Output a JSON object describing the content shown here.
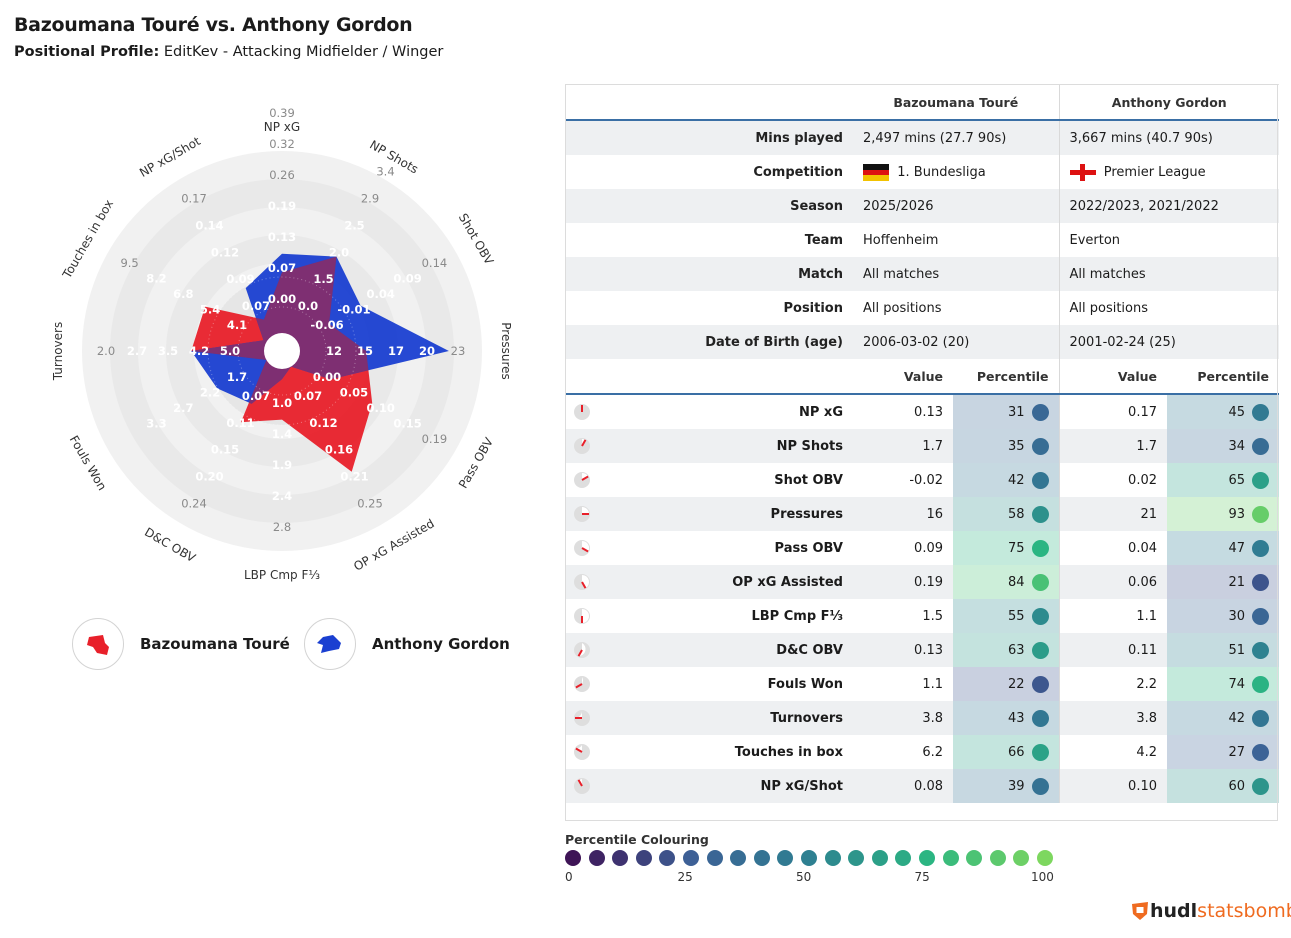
{
  "header": {
    "title": "Bazoumana Touré vs. Anthony Gordon",
    "profile_label": "Positional Profile:",
    "profile_value": "EditKev - Attacking Midfielder / Winger"
  },
  "colors": {
    "player1": "#e8202a",
    "player2": "#1a3fd1",
    "overlap": "#7e2f72"
  },
  "chart_data": {
    "type": "radar",
    "axes": [
      {
        "label": "NP xG",
        "ticks": [
          "0.00",
          "0.07",
          "0.13",
          "0.19",
          "0.26",
          "0.32",
          "0.39"
        ]
      },
      {
        "label": "NP Shots",
        "ticks": [
          "0.0",
          "1.5",
          "2.0",
          "2.5",
          "2.9",
          "3.4"
        ]
      },
      {
        "label": "Shot OBV",
        "ticks": [
          "-0.06",
          "-0.01",
          "0.04",
          "0.09",
          "0.14"
        ]
      },
      {
        "label": "Pressures",
        "ticks": [
          "12",
          "15",
          "17",
          "20",
          "23"
        ]
      },
      {
        "label": "Pass OBV",
        "ticks": [
          "0.00",
          "0.05",
          "0.10",
          "0.15",
          "0.19"
        ]
      },
      {
        "label": "OP xG Assisted",
        "ticks": [
          "0.07",
          "0.12",
          "0.16",
          "0.21",
          "0.25"
        ]
      },
      {
        "label": "LBP Cmp F⅓",
        "ticks": [
          "1.0",
          "1.4",
          "1.9",
          "2.4",
          "2.8"
        ]
      },
      {
        "label": "D&C OBV",
        "ticks": [
          "0.07",
          "0.11",
          "0.15",
          "0.20",
          "0.24"
        ]
      },
      {
        "label": "Fouls Won",
        "ticks": [
          "1.7",
          "2.2",
          "2.7",
          "3.3"
        ]
      },
      {
        "label": "Turnovers",
        "ticks": [
          "5.0",
          "4.2",
          "3.5",
          "2.7",
          "2.0"
        ]
      },
      {
        "label": "Touches in box",
        "ticks": [
          "4.1",
          "5.4",
          "6.8",
          "8.2",
          "9.5"
        ]
      },
      {
        "label": "NP xG/Shot",
        "ticks": [
          "0.07",
          "0.09",
          "0.12",
          "0.14",
          "0.17"
        ]
      }
    ],
    "series": [
      {
        "name": "Bazoumana Touré",
        "values": [
          0.13,
          1.7,
          -0.02,
          16,
          0.09,
          0.19,
          1.5,
          0.13,
          1.1,
          3.8,
          6.2,
          0.08
        ]
      },
      {
        "name": "Anthony Gordon",
        "values": [
          0.17,
          1.7,
          0.02,
          21,
          0.04,
          0.06,
          1.1,
          0.11,
          2.2,
          3.8,
          4.2,
          0.1
        ]
      }
    ]
  },
  "legend": {
    "player1": "Bazoumana Touré",
    "player2": "Anthony Gordon"
  },
  "table": {
    "player1_header": "Bazoumana Touré",
    "player2_header": "Anthony Gordon",
    "info": [
      {
        "label": "Mins played",
        "p1": "2,497 mins (27.7 90s)",
        "p2": "3,667 mins (40.7 90s)"
      },
      {
        "label": "Competition",
        "p1": "1. Bundesliga",
        "p2": "Premier League"
      },
      {
        "label": "Season",
        "p1": "2025/2026",
        "p2": "2022/2023, 2021/2022"
      },
      {
        "label": "Team",
        "p1": "Hoffenheim",
        "p2": "Everton"
      },
      {
        "label": "Match",
        "p1": "All matches",
        "p2": "All matches"
      },
      {
        "label": "Position",
        "p1": "All positions",
        "p2": "All positions"
      },
      {
        "label": "Date of Birth (age)",
        "p1": "2006-03-02 (20)",
        "p2": "2001-02-24 (25)"
      }
    ],
    "value_header": "Value",
    "percentile_header": "Percentile",
    "metrics": [
      {
        "name": "NP xG",
        "v1": "0.13",
        "p1": 31,
        "v2": "0.17",
        "p2": 45
      },
      {
        "name": "NP Shots",
        "v1": "1.7",
        "p1": 35,
        "v2": "1.7",
        "p2": 34
      },
      {
        "name": "Shot OBV",
        "v1": "-0.02",
        "p1": 42,
        "v2": "0.02",
        "p2": 65
      },
      {
        "name": "Pressures",
        "v1": "16",
        "p1": 58,
        "v2": "21",
        "p2": 93
      },
      {
        "name": "Pass OBV",
        "v1": "0.09",
        "p1": 75,
        "v2": "0.04",
        "p2": 47
      },
      {
        "name": "OP xG Assisted",
        "v1": "0.19",
        "p1": 84,
        "v2": "0.06",
        "p2": 21
      },
      {
        "name": "LBP Cmp F⅓",
        "v1": "1.5",
        "p1": 55,
        "v2": "1.1",
        "p2": 30
      },
      {
        "name": "D&C OBV",
        "v1": "0.13",
        "p1": 63,
        "v2": "0.11",
        "p2": 51
      },
      {
        "name": "Fouls Won",
        "v1": "1.1",
        "p1": 22,
        "v2": "2.2",
        "p2": 74
      },
      {
        "name": "Turnovers",
        "v1": "3.8",
        "p1": 43,
        "v2": "3.8",
        "p2": 42
      },
      {
        "name": "Touches in box",
        "v1": "6.2",
        "p1": 66,
        "v2": "4.2",
        "p2": 27
      },
      {
        "name": "NP xG/Shot",
        "v1": "0.08",
        "p1": 39,
        "v2": "0.10",
        "p2": 60
      }
    ]
  },
  "scale": {
    "title": "Percentile Colouring",
    "ticks": [
      "0",
      "25",
      "50",
      "75",
      "100"
    ]
  },
  "brand": {
    "part1": "hudl",
    "part2": "statsbomb"
  }
}
